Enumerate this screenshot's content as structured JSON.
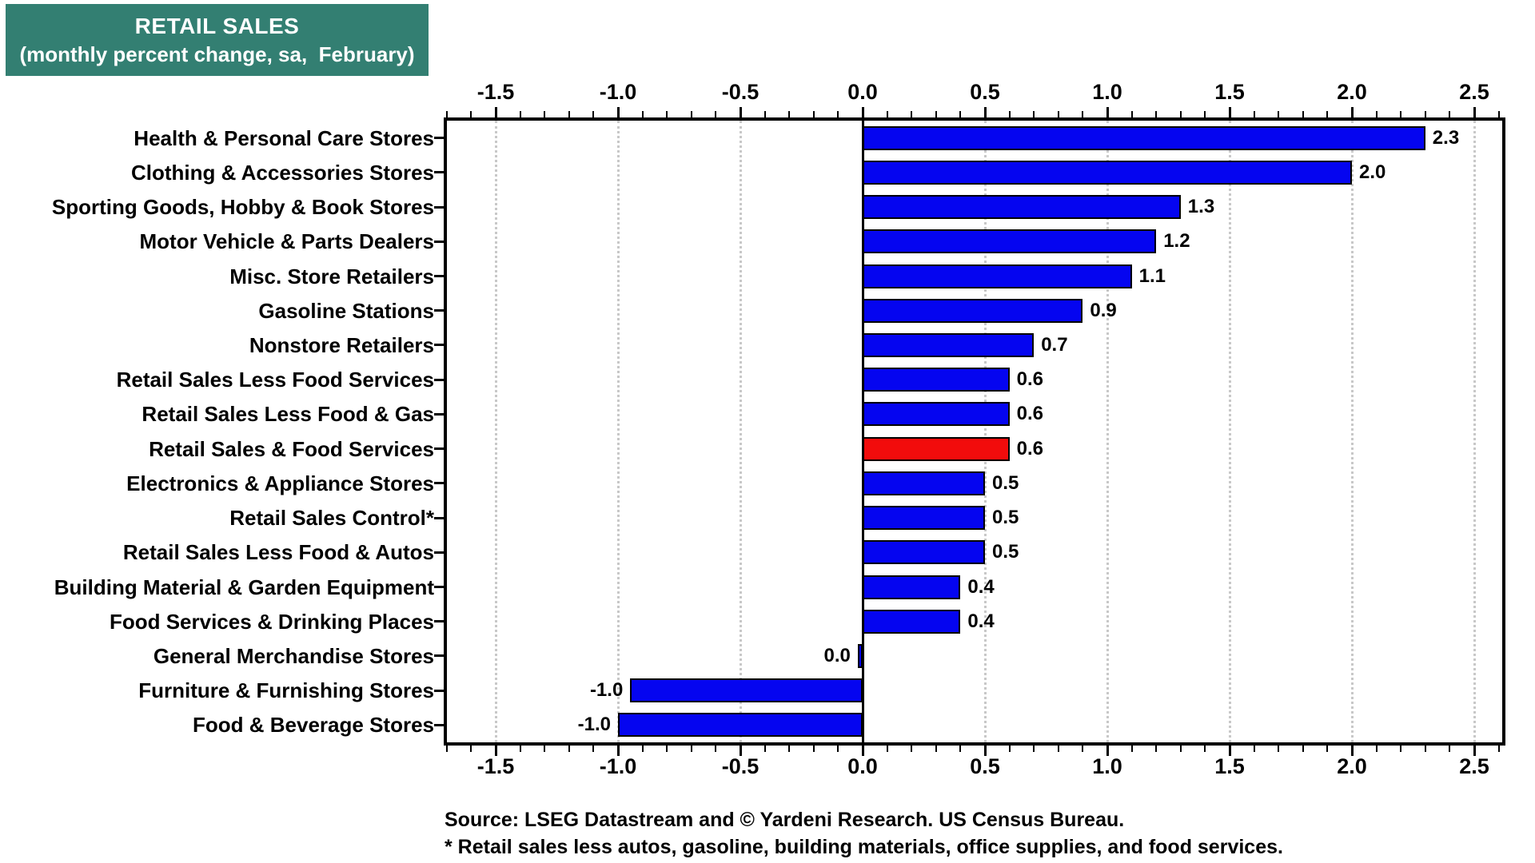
{
  "title": {
    "line1": "RETAIL SALES",
    "line2": "(monthly percent change, sa,  February)"
  },
  "footer": {
    "source": "Source: LSEG Datastream and © Yardeni Research. US Census Bureau.",
    "footnote": "* Retail sales less autos, gasoline, building materials, office supplies, and food services."
  },
  "colors": {
    "title_bg": "#337F72",
    "title_text": "#FFFFFF",
    "bar_blue": "#0505F0",
    "bar_highlight_red": "#F20C0C",
    "grid": "#c8c8c8",
    "axis": "#000000"
  },
  "chart_data": {
    "type": "bar",
    "orientation": "horizontal",
    "title": "RETAIL SALES (monthly percent change, sa, February)",
    "xlim": [
      -1.71,
      2.63
    ],
    "x_ticks": [
      -1.5,
      -1.0,
      -0.5,
      0.0,
      0.5,
      1.0,
      1.5,
      2.0,
      2.5
    ],
    "x_tick_labels": [
      "-1.5",
      "-1.0",
      "-0.5",
      "0.0",
      "0.5",
      "1.0",
      "1.5",
      "2.0",
      "2.5"
    ],
    "minor_tick_step": 0.1,
    "grid": true,
    "legend": false,
    "categories": [
      "Health & Personal Care Stores",
      "Clothing & Accessories Stores",
      "Sporting Goods, Hobby & Book Stores",
      "Motor Vehicle & Parts Dealers",
      "Misc. Store Retailers",
      "Gasoline Stations",
      "Nonstore Retailers",
      "Retail Sales Less Food Services",
      "Retail Sales Less Food & Gas",
      "Retail Sales & Food Services",
      "Electronics & Appliance Stores",
      "Retail Sales Control*",
      "Retail Sales Less Food & Autos",
      "Building Material & Garden Equipment",
      "Food Services & Drinking Places",
      "General Merchandise Stores",
      "Furniture & Furnishing Stores",
      "Food & Beverage Stores"
    ],
    "values": [
      2.3,
      2.0,
      1.3,
      1.2,
      1.1,
      0.9,
      0.7,
      0.6,
      0.6,
      0.6,
      0.5,
      0.5,
      0.5,
      0.4,
      0.4,
      -0.02,
      -0.95,
      -1.0
    ],
    "value_labels": [
      "2.3",
      "2.0",
      "1.3",
      "1.2",
      "1.1",
      "0.9",
      "0.7",
      "0.6",
      "0.6",
      "0.6",
      "0.5",
      "0.5",
      "0.5",
      "0.4",
      "0.4",
      "0.0",
      "-1.0",
      "-1.0"
    ],
    "highlight_index": 9
  }
}
